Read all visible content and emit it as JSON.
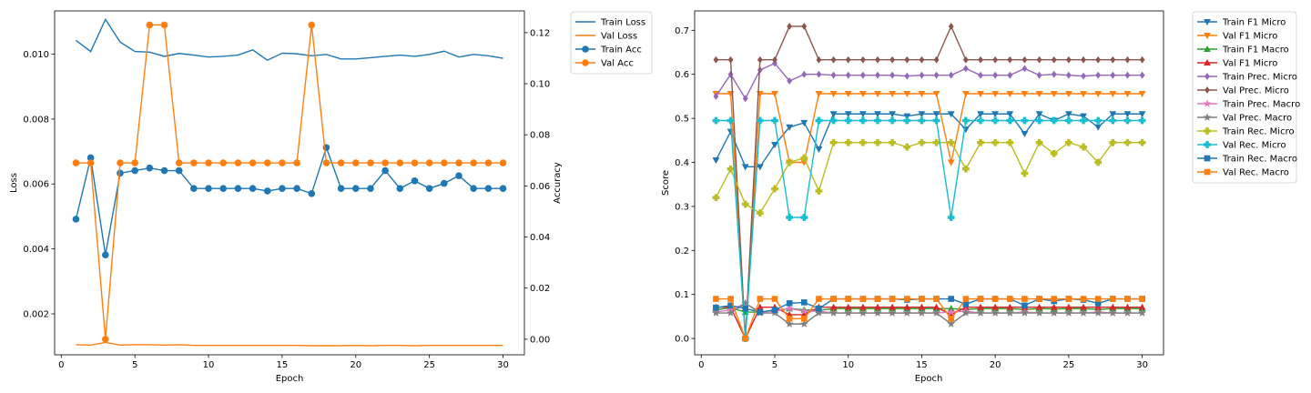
{
  "chart_data": [
    {
      "type": "line",
      "xlabel": "Epoch",
      "ylabel": "Loss",
      "ylabel_right": "Accuracy",
      "xlim": [
        -0.45,
        31.45
      ],
      "ylim": [
        0.00074,
        0.01133
      ],
      "ylim_right": [
        -0.0061,
        0.1285
      ],
      "x_ticks": [
        0,
        5,
        10,
        15,
        20,
        25,
        30
      ],
      "y_ticks": [
        0.002,
        0.004,
        0.006,
        0.008,
        0.01
      ],
      "y_tick_labels": [
        "0.002",
        "0.004",
        "0.006",
        "0.008",
        "0.010"
      ],
      "y_ticks_right": [
        0.0,
        0.02,
        0.04,
        0.06,
        0.08,
        0.1,
        0.12
      ],
      "y_tick_labels_right": [
        "0.00",
        "0.02",
        "0.04",
        "0.06",
        "0.08",
        "0.10",
        "0.12"
      ],
      "x": [
        1,
        2,
        3,
        4,
        5,
        6,
        7,
        8,
        9,
        10,
        11,
        12,
        13,
        14,
        15,
        16,
        17,
        18,
        19,
        20,
        21,
        22,
        23,
        24,
        25,
        26,
        27,
        28,
        29,
        30
      ],
      "legend_position": "outside-top-right",
      "series": [
        {
          "name": "Train Loss",
          "axis": "left",
          "color": "#1f77b4",
          "marker": "none",
          "values": [
            0.01042,
            0.01008,
            0.01107,
            0.01037,
            0.01008,
            0.01006,
            0.00993,
            0.01002,
            0.00997,
            0.00991,
            0.00993,
            0.00997,
            0.01013,
            0.00981,
            0.01003,
            0.01001,
            0.00995,
            0.00999,
            0.00985,
            0.00985,
            0.00989,
            0.00993,
            0.00997,
            0.00993,
            0.00999,
            0.01009,
            0.00991,
            0.00999,
            0.00995,
            0.00987
          ]
        },
        {
          "name": "Val Loss",
          "axis": "left",
          "color": "#ff7f0e",
          "marker": "none",
          "values": [
            0.00105,
            0.00104,
            0.00112,
            0.00104,
            0.00105,
            0.00105,
            0.00104,
            0.00105,
            0.00103,
            0.00103,
            0.00103,
            0.00103,
            0.00103,
            0.00103,
            0.00103,
            0.00103,
            0.00102,
            0.00102,
            0.00102,
            0.00103,
            0.00102,
            0.00103,
            0.00103,
            0.00102,
            0.00103,
            0.00103,
            0.00103,
            0.00103,
            0.00103,
            0.00103
          ]
        },
        {
          "name": "Train Acc",
          "axis": "right",
          "color": "#1f77b4",
          "marker": "circle",
          "values": [
            0.047,
            0.071,
            0.033,
            0.065,
            0.066,
            0.067,
            0.066,
            0.066,
            0.059,
            0.059,
            0.059,
            0.059,
            0.059,
            0.058,
            0.059,
            0.059,
            0.057,
            0.075,
            0.059,
            0.059,
            0.059,
            0.066,
            0.059,
            0.062,
            0.059,
            0.061,
            0.064,
            0.059,
            0.059,
            0.059
          ]
        },
        {
          "name": "Val Acc",
          "axis": "right",
          "color": "#ff7f0e",
          "marker": "circle",
          "values": [
            0.069,
            0.069,
            0.0,
            0.069,
            0.069,
            0.123,
            0.123,
            0.069,
            0.069,
            0.069,
            0.069,
            0.069,
            0.069,
            0.069,
            0.069,
            0.069,
            0.123,
            0.069,
            0.069,
            0.069,
            0.069,
            0.069,
            0.069,
            0.069,
            0.069,
            0.069,
            0.069,
            0.069,
            0.069,
            0.069
          ]
        }
      ]
    },
    {
      "type": "line",
      "xlabel": "Epoch",
      "ylabel": "Score",
      "xlim": [
        -0.45,
        31.45
      ],
      "ylim": [
        -0.037,
        0.744
      ],
      "x_ticks": [
        0,
        5,
        10,
        15,
        20,
        25,
        30
      ],
      "y_ticks": [
        0.0,
        0.1,
        0.2,
        0.3,
        0.4,
        0.5,
        0.6,
        0.7
      ],
      "y_tick_labels": [
        "0.0",
        "0.1",
        "0.2",
        "0.3",
        "0.4",
        "0.5",
        "0.6",
        "0.7"
      ],
      "x": [
        1,
        2,
        3,
        4,
        5,
        6,
        7,
        8,
        9,
        10,
        11,
        12,
        13,
        14,
        15,
        16,
        17,
        18,
        19,
        20,
        21,
        22,
        23,
        24,
        25,
        26,
        27,
        28,
        29,
        30
      ],
      "legend_position": "outside-top-right",
      "series": [
        {
          "name": "Train F1 Micro",
          "color": "#1f77b4",
          "marker": "triangle-down",
          "values": [
            0.405,
            0.47,
            0.39,
            0.39,
            0.44,
            0.48,
            0.49,
            0.43,
            0.51,
            0.51,
            0.51,
            0.51,
            0.51,
            0.505,
            0.51,
            0.51,
            0.51,
            0.475,
            0.51,
            0.51,
            0.51,
            0.465,
            0.51,
            0.495,
            0.51,
            0.505,
            0.48,
            0.51,
            0.51,
            0.51
          ]
        },
        {
          "name": "Val F1 Micro",
          "color": "#ff7f0e",
          "marker": "triangle-down",
          "values": [
            0.556,
            0.556,
            0.0,
            0.556,
            0.556,
            0.4,
            0.4,
            0.556,
            0.556,
            0.556,
            0.556,
            0.556,
            0.556,
            0.556,
            0.556,
            0.556,
            0.4,
            0.556,
            0.556,
            0.556,
            0.556,
            0.556,
            0.556,
            0.556,
            0.556,
            0.556,
            0.556,
            0.556,
            0.556,
            0.556
          ]
        },
        {
          "name": "Train F1 Macro",
          "color": "#2ca02c",
          "marker": "triangle-up",
          "values": [
            0.065,
            0.07,
            0.06,
            0.06,
            0.063,
            0.068,
            0.065,
            0.064,
            0.068,
            0.068,
            0.068,
            0.068,
            0.068,
            0.068,
            0.068,
            0.068,
            0.068,
            0.066,
            0.068,
            0.068,
            0.068,
            0.066,
            0.068,
            0.067,
            0.068,
            0.068,
            0.066,
            0.068,
            0.068,
            0.068
          ]
        },
        {
          "name": "Val F1 Micro",
          "color": "#d62728",
          "marker": "triangle-up",
          "values": [
            0.071,
            0.071,
            0.0,
            0.071,
            0.071,
            0.054,
            0.054,
            0.071,
            0.071,
            0.071,
            0.071,
            0.071,
            0.071,
            0.071,
            0.071,
            0.071,
            0.054,
            0.071,
            0.071,
            0.071,
            0.071,
            0.071,
            0.071,
            0.071,
            0.071,
            0.071,
            0.071,
            0.071,
            0.071,
            0.071
          ]
        },
        {
          "name": "Train Prec. Micro",
          "color": "#9467bd",
          "marker": "diamond",
          "values": [
            0.55,
            0.6,
            0.545,
            0.61,
            0.625,
            0.585,
            0.6,
            0.6,
            0.598,
            0.598,
            0.598,
            0.598,
            0.598,
            0.596,
            0.598,
            0.598,
            0.598,
            0.613,
            0.598,
            0.598,
            0.598,
            0.613,
            0.598,
            0.6,
            0.598,
            0.596,
            0.598,
            0.598,
            0.598,
            0.598
          ]
        },
        {
          "name": "Val Prec. Micro",
          "color": "#8c564b",
          "marker": "diamond",
          "values": [
            0.633,
            0.633,
            0.0,
            0.633,
            0.633,
            0.709,
            0.709,
            0.633,
            0.633,
            0.633,
            0.633,
            0.633,
            0.633,
            0.633,
            0.633,
            0.633,
            0.709,
            0.633,
            0.633,
            0.633,
            0.633,
            0.633,
            0.633,
            0.633,
            0.633,
            0.633,
            0.633,
            0.633,
            0.633,
            0.633
          ]
        },
        {
          "name": "Train Prec. Macro",
          "color": "#e377c2",
          "marker": "star",
          "values": [
            0.06,
            0.065,
            0.08,
            0.06,
            0.062,
            0.068,
            0.062,
            0.062,
            0.058,
            0.058,
            0.058,
            0.058,
            0.058,
            0.058,
            0.058,
            0.058,
            0.06,
            0.062,
            0.058,
            0.058,
            0.058,
            0.06,
            0.058,
            0.058,
            0.058,
            0.058,
            0.06,
            0.058,
            0.058,
            0.058
          ]
        },
        {
          "name": "Val Prec. Macro",
          "color": "#7f7f7f",
          "marker": "star",
          "values": [
            0.058,
            0.058,
            0.08,
            0.058,
            0.058,
            0.033,
            0.033,
            0.058,
            0.058,
            0.058,
            0.058,
            0.058,
            0.058,
            0.058,
            0.058,
            0.058,
            0.033,
            0.058,
            0.058,
            0.058,
            0.058,
            0.058,
            0.058,
            0.058,
            0.058,
            0.058,
            0.058,
            0.058,
            0.058,
            0.058
          ]
        },
        {
          "name": "Train Rec. Micro",
          "color": "#bcbd22",
          "marker": "plus",
          "values": [
            0.32,
            0.385,
            0.305,
            0.285,
            0.34,
            0.4,
            0.41,
            0.335,
            0.445,
            0.445,
            0.445,
            0.445,
            0.445,
            0.435,
            0.445,
            0.445,
            0.445,
            0.385,
            0.445,
            0.445,
            0.445,
            0.375,
            0.445,
            0.42,
            0.445,
            0.435,
            0.4,
            0.445,
            0.445,
            0.445
          ]
        },
        {
          "name": "Val Rec. Micro",
          "color": "#17becf",
          "marker": "plus",
          "values": [
            0.495,
            0.495,
            0.0,
            0.495,
            0.495,
            0.275,
            0.275,
            0.495,
            0.495,
            0.495,
            0.495,
            0.495,
            0.495,
            0.495,
            0.495,
            0.495,
            0.275,
            0.495,
            0.495,
            0.495,
            0.495,
            0.495,
            0.495,
            0.495,
            0.495,
            0.495,
            0.495,
            0.495,
            0.495,
            0.495
          ]
        },
        {
          "name": "Train Rec. Macro",
          "color": "#1f77b4",
          "marker": "square",
          "values": [
            0.07,
            0.075,
            0.068,
            0.06,
            0.065,
            0.08,
            0.082,
            0.068,
            0.09,
            0.09,
            0.09,
            0.09,
            0.09,
            0.088,
            0.09,
            0.09,
            0.09,
            0.078,
            0.09,
            0.09,
            0.09,
            0.075,
            0.09,
            0.085,
            0.09,
            0.088,
            0.08,
            0.09,
            0.09,
            0.09
          ]
        },
        {
          "name": "Val Rec. Macro",
          "color": "#ff7f0e",
          "marker": "square",
          "values": [
            0.09,
            0.09,
            0.0,
            0.09,
            0.09,
            0.045,
            0.045,
            0.09,
            0.09,
            0.09,
            0.09,
            0.09,
            0.09,
            0.09,
            0.09,
            0.09,
            0.045,
            0.09,
            0.09,
            0.09,
            0.09,
            0.09,
            0.09,
            0.09,
            0.09,
            0.09,
            0.09,
            0.09,
            0.09,
            0.09
          ]
        }
      ]
    }
  ]
}
